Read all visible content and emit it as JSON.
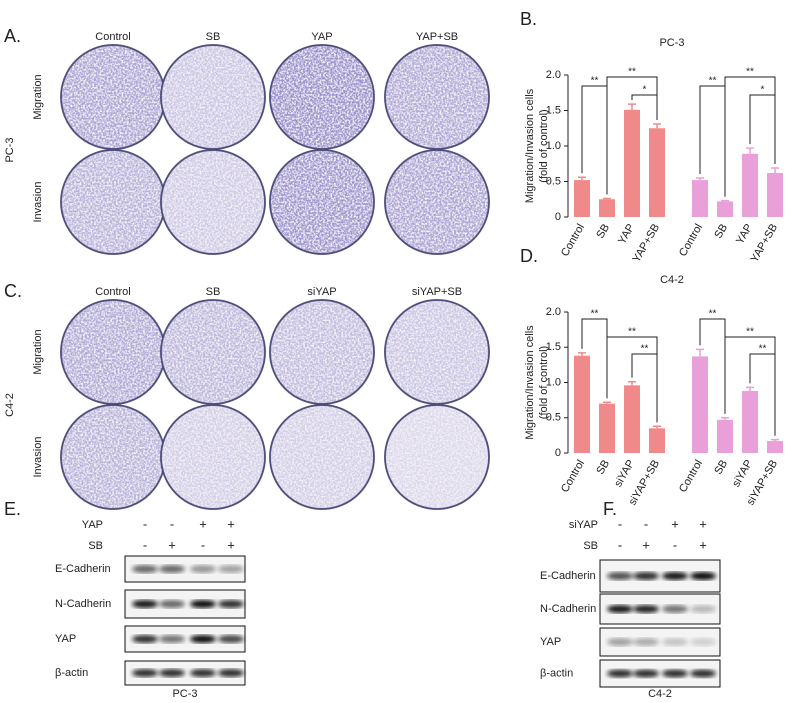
{
  "panel_a": {
    "label": "A.",
    "columns": [
      "Control",
      "SB",
      "YAP",
      "YAP+SB"
    ],
    "rows": [
      "Migration",
      "Invasion"
    ],
    "cell_line": "PC-3"
  },
  "panel_c": {
    "label": "C.",
    "columns": [
      "Control",
      "SB",
      "siYAP",
      "siYAP+SB"
    ],
    "rows": [
      "Migration",
      "Invasion"
    ],
    "cell_line": "C4-2"
  },
  "chart_data": [
    {
      "type": "bar",
      "panel_label": "B.",
      "title": "PC-3",
      "ylabel": "Migration/Invasion cells",
      "ylabel2": "(fold of control)",
      "ylim": [
        0,
        2
      ],
      "yticks": [
        0,
        0.5,
        {
          "value": 1,
          "label": "1.0"
        },
        1.5,
        {
          "value": 2,
          "label": "2.0"
        }
      ],
      "groups": [
        {
          "categories": [
            "Control",
            "SB",
            "YAP",
            "YAP+SB"
          ],
          "values": [
            0.52,
            0.25,
            1.51,
            1.25
          ],
          "errors": [
            0.04,
            0.01,
            0.08,
            0.06
          ],
          "color": "#f08a8a"
        },
        {
          "categories": [
            "Control",
            "SB",
            "YAP",
            "YAP+SB"
          ],
          "values": [
            0.52,
            0.22,
            0.89,
            0.62
          ],
          "errors": [
            0.03,
            0.01,
            0.08,
            0.07
          ],
          "color": "#e9a0d8"
        }
      ],
      "annotations": [
        {
          "group": 0,
          "from": 0,
          "to": 1,
          "label": "**"
        },
        {
          "group": 0,
          "from": 1,
          "to": 3,
          "label": "**"
        },
        {
          "group": 0,
          "from": 2,
          "to": 3,
          "label": "*"
        },
        {
          "group": 1,
          "from": 0,
          "to": 1,
          "label": "**"
        },
        {
          "group": 1,
          "from": 1,
          "to": 3,
          "label": "**"
        },
        {
          "group": 1,
          "from": 2,
          "to": 3,
          "label": "*"
        }
      ]
    },
    {
      "type": "bar",
      "panel_label": "D.",
      "title": "C4-2",
      "ylabel": "Migration/Invasion cells",
      "ylabel2": "(fold of control)",
      "ylim": [
        0,
        2
      ],
      "yticks": [
        0,
        0.5,
        {
          "value": 1,
          "label": "1.0"
        },
        1.5,
        {
          "value": 2,
          "label": "2.0"
        }
      ],
      "groups": [
        {
          "categories": [
            "Control",
            "SB",
            "siYAP",
            "siYAP+SB"
          ],
          "values": [
            1.38,
            0.7,
            0.96,
            0.35
          ],
          "errors": [
            0.04,
            0.02,
            0.05,
            0.03
          ],
          "color": "#f08a8a"
        },
        {
          "categories": [
            "Control",
            "SB",
            "siYAP",
            "siYAP+SB"
          ],
          "values": [
            1.37,
            0.47,
            0.88,
            0.17
          ],
          "errors": [
            0.1,
            0.03,
            0.05,
            0.02
          ],
          "color": "#e9a0d8"
        }
      ],
      "annotations": [
        {
          "group": 0,
          "from": 0,
          "to": 1,
          "label": "**"
        },
        {
          "group": 0,
          "from": 1,
          "to": 3,
          "label": "**"
        },
        {
          "group": 0,
          "from": 2,
          "to": 3,
          "label": "**"
        },
        {
          "group": 1,
          "from": 0,
          "to": 1,
          "label": "**"
        },
        {
          "group": 1,
          "from": 1,
          "to": 3,
          "label": "**"
        },
        {
          "group": 1,
          "from": 2,
          "to": 3,
          "label": "**"
        }
      ]
    }
  ],
  "panel_e": {
    "label": "E.",
    "conditions": [
      {
        "name": "YAP",
        "signs": [
          "-",
          "-",
          "+",
          "+"
        ]
      },
      {
        "name": "SB",
        "signs": [
          "-",
          "+",
          "-",
          "+"
        ]
      }
    ],
    "proteins": [
      "E-Cadherin",
      "N-Cadherin",
      "YAP",
      "β-actin"
    ],
    "cell_line": "PC-3"
  },
  "panel_f": {
    "label": "F.",
    "conditions": [
      {
        "name": "siYAP",
        "signs": [
          "-",
          "-",
          "+",
          "+"
        ]
      },
      {
        "name": "SB",
        "signs": [
          "-",
          "+",
          "-",
          "+"
        ]
      }
    ],
    "proteins": [
      "E-Cadherin",
      "N-Cadherin",
      "YAP",
      "β-actin"
    ],
    "cell_line": "C4-2"
  }
}
